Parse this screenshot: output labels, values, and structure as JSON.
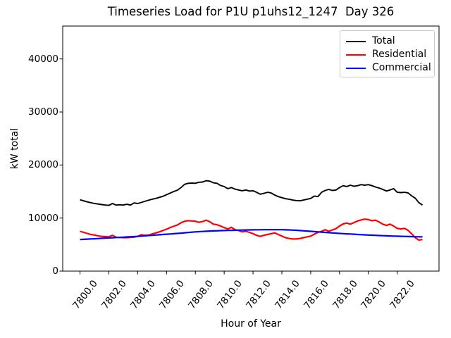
{
  "figure": {
    "background": "#ffffff"
  },
  "chart_data": {
    "type": "line",
    "title": "Timeseries Load for P1U p1uhs12_1247  Day 326",
    "xlabel": "Hour of Year",
    "ylabel": "kW total",
    "grid": false,
    "xlim": [
      7798.8,
      7824.9
    ],
    "ylim": [
      0,
      46200
    ],
    "xticks": {
      "values": [
        7800,
        7802,
        7804,
        7806,
        7808,
        7810,
        7812,
        7814,
        7816,
        7818,
        7820,
        7822
      ],
      "labels": [
        "7800.0",
        "7802.0",
        "7804.0",
        "7806.0",
        "7808.0",
        "7810.0",
        "7812.0",
        "7814.0",
        "7816.0",
        "7818.0",
        "7820.0",
        "7822.0"
      ]
    },
    "yticks": {
      "values": [
        0,
        10000,
        20000,
        30000,
        40000
      ],
      "labels": [
        "0",
        "10000",
        "20000",
        "30000",
        "40000"
      ]
    },
    "x": [
      7800.0,
      7800.25,
      7800.5,
      7800.75,
      7801.0,
      7801.25,
      7801.5,
      7801.75,
      7802.0,
      7802.25,
      7802.5,
      7802.75,
      7803.0,
      7803.25,
      7803.5,
      7803.75,
      7804.0,
      7804.25,
      7804.5,
      7804.75,
      7805.0,
      7805.25,
      7805.5,
      7805.75,
      7806.0,
      7806.25,
      7806.5,
      7806.75,
      7807.0,
      7807.25,
      7807.5,
      7807.75,
      7808.0,
      7808.25,
      7808.5,
      7808.75,
      7809.0,
      7809.25,
      7809.5,
      7809.75,
      7810.0,
      7810.25,
      7810.5,
      7810.75,
      7811.0,
      7811.25,
      7811.5,
      7811.75,
      7812.0,
      7812.25,
      7812.5,
      7812.75,
      7813.0,
      7813.25,
      7813.5,
      7813.75,
      7814.0,
      7814.25,
      7814.5,
      7814.75,
      7815.0,
      7815.25,
      7815.5,
      7815.75,
      7816.0,
      7816.25,
      7816.5,
      7816.75,
      7817.0,
      7817.25,
      7817.5,
      7817.75,
      7818.0,
      7818.25,
      7818.5,
      7818.75,
      7819.0,
      7819.25,
      7819.5,
      7819.75,
      7820.0,
      7820.25,
      7820.5,
      7820.75,
      7821.0,
      7821.25,
      7821.5,
      7821.75,
      7822.0,
      7822.25,
      7822.5,
      7822.75,
      7823.0,
      7823.25,
      7823.5,
      7823.75
    ],
    "series": [
      {
        "name": "Total",
        "color": "#000000",
        "values": [
          13450,
          13250,
          13050,
          12900,
          12750,
          12650,
          12550,
          12450,
          12400,
          12750,
          12450,
          12500,
          12450,
          12600,
          12450,
          12850,
          12750,
          12950,
          13150,
          13350,
          13550,
          13700,
          13900,
          14100,
          14400,
          14700,
          15000,
          15250,
          15750,
          16350,
          16550,
          16600,
          16550,
          16750,
          16800,
          17050,
          16950,
          16650,
          16550,
          16150,
          15950,
          15550,
          15750,
          15450,
          15300,
          15150,
          15300,
          15100,
          15150,
          14850,
          14500,
          14650,
          14850,
          14750,
          14350,
          14050,
          13850,
          13650,
          13550,
          13400,
          13300,
          13250,
          13400,
          13550,
          13700,
          14150,
          14050,
          14850,
          15200,
          15400,
          15200,
          15300,
          15750,
          16100,
          15950,
          16200,
          16000,
          16100,
          16300,
          16200,
          16300,
          16100,
          15850,
          15650,
          15400,
          15100,
          15300,
          15550,
          14850,
          14800,
          14850,
          14750,
          14200,
          13750,
          12900,
          12450
        ]
      },
      {
        "name": "Residential",
        "color": "#ff0000",
        "values": [
          7500,
          7300,
          7100,
          6900,
          6800,
          6650,
          6550,
          6500,
          6450,
          6750,
          6400,
          6350,
          6300,
          6300,
          6350,
          6400,
          6550,
          6850,
          6750,
          6800,
          7000,
          7200,
          7400,
          7650,
          7900,
          8200,
          8450,
          8700,
          9100,
          9400,
          9500,
          9450,
          9400,
          9200,
          9350,
          9600,
          9300,
          8850,
          8750,
          8500,
          8200,
          7950,
          8250,
          7800,
          7650,
          7400,
          7500,
          7300,
          7050,
          6750,
          6550,
          6750,
          6900,
          7050,
          7200,
          6900,
          6600,
          6300,
          6150,
          6050,
          6050,
          6150,
          6300,
          6450,
          6600,
          6950,
          7300,
          7500,
          7800,
          7500,
          7750,
          8000,
          8500,
          8900,
          9050,
          8850,
          9150,
          9450,
          9650,
          9800,
          9700,
          9500,
          9600,
          9250,
          8850,
          8600,
          8850,
          8500,
          8050,
          7950,
          8050,
          7700,
          7050,
          6300,
          5850,
          5950
        ]
      },
      {
        "name": "Commercial",
        "color": "#0000ff",
        "values": [
          5950,
          5990,
          6030,
          6070,
          6100,
          6140,
          6180,
          6220,
          6250,
          6290,
          6330,
          6360,
          6400,
          6440,
          6480,
          6510,
          6550,
          6600,
          6650,
          6700,
          6750,
          6800,
          6850,
          6900,
          6950,
          7000,
          7050,
          7100,
          7150,
          7220,
          7280,
          7340,
          7400,
          7440,
          7480,
          7520,
          7550,
          7580,
          7600,
          7630,
          7650,
          7670,
          7690,
          7700,
          7720,
          7740,
          7750,
          7770,
          7780,
          7790,
          7790,
          7800,
          7800,
          7800,
          7800,
          7800,
          7800,
          7780,
          7760,
          7730,
          7700,
          7650,
          7600,
          7550,
          7500,
          7450,
          7400,
          7350,
          7300,
          7250,
          7200,
          7150,
          7100,
          7060,
          7020,
          6990,
          6950,
          6910,
          6870,
          6840,
          6800,
          6770,
          6740,
          6710,
          6680,
          6650,
          6630,
          6600,
          6580,
          6560,
          6540,
          6520,
          6500,
          6480,
          6460,
          6450
        ]
      }
    ],
    "legend": {
      "position": "upper right",
      "entries": [
        "Total",
        "Residential",
        "Commercial"
      ]
    }
  }
}
